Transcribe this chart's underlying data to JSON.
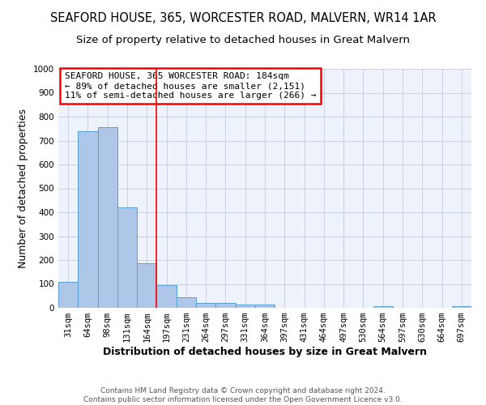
{
  "title": "SEAFORD HOUSE, 365, WORCESTER ROAD, MALVERN, WR14 1AR",
  "subtitle": "Size of property relative to detached houses in Great Malvern",
  "xlabel": "Distribution of detached houses by size in Great Malvern",
  "ylabel": "Number of detached properties",
  "categories": [
    "31sqm",
    "64sqm",
    "98sqm",
    "131sqm",
    "164sqm",
    "197sqm",
    "231sqm",
    "264sqm",
    "297sqm",
    "331sqm",
    "364sqm",
    "397sqm",
    "431sqm",
    "464sqm",
    "497sqm",
    "530sqm",
    "564sqm",
    "597sqm",
    "630sqm",
    "664sqm",
    "697sqm"
  ],
  "values": [
    110,
    740,
    755,
    420,
    185,
    95,
    45,
    22,
    22,
    13,
    13,
    0,
    0,
    0,
    0,
    0,
    8,
    0,
    0,
    0,
    8
  ],
  "bar_color": "#aec6e8",
  "bar_edge_color": "#5a9fd4",
  "red_line_x": 4.5,
  "ylim": [
    0,
    1000
  ],
  "yticks": [
    0,
    100,
    200,
    300,
    400,
    500,
    600,
    700,
    800,
    900,
    1000
  ],
  "annotation_title": "SEAFORD HOUSE, 365 WORCESTER ROAD: 184sqm",
  "annotation_line1": "← 89% of detached houses are smaller (2,151)",
  "annotation_line2": "11% of semi-detached houses are larger (266) →",
  "footer": "Contains HM Land Registry data © Crown copyright and database right 2024.\nContains public sector information licensed under the Open Government Licence v3.0.",
  "background_color": "#eef2fb",
  "grid_color": "#c8cfe0",
  "title_fontsize": 10.5,
  "subtitle_fontsize": 9.5,
  "axis_label_fontsize": 9,
  "tick_fontsize": 7.5,
  "annotation_fontsize": 8,
  "footer_fontsize": 6.5
}
